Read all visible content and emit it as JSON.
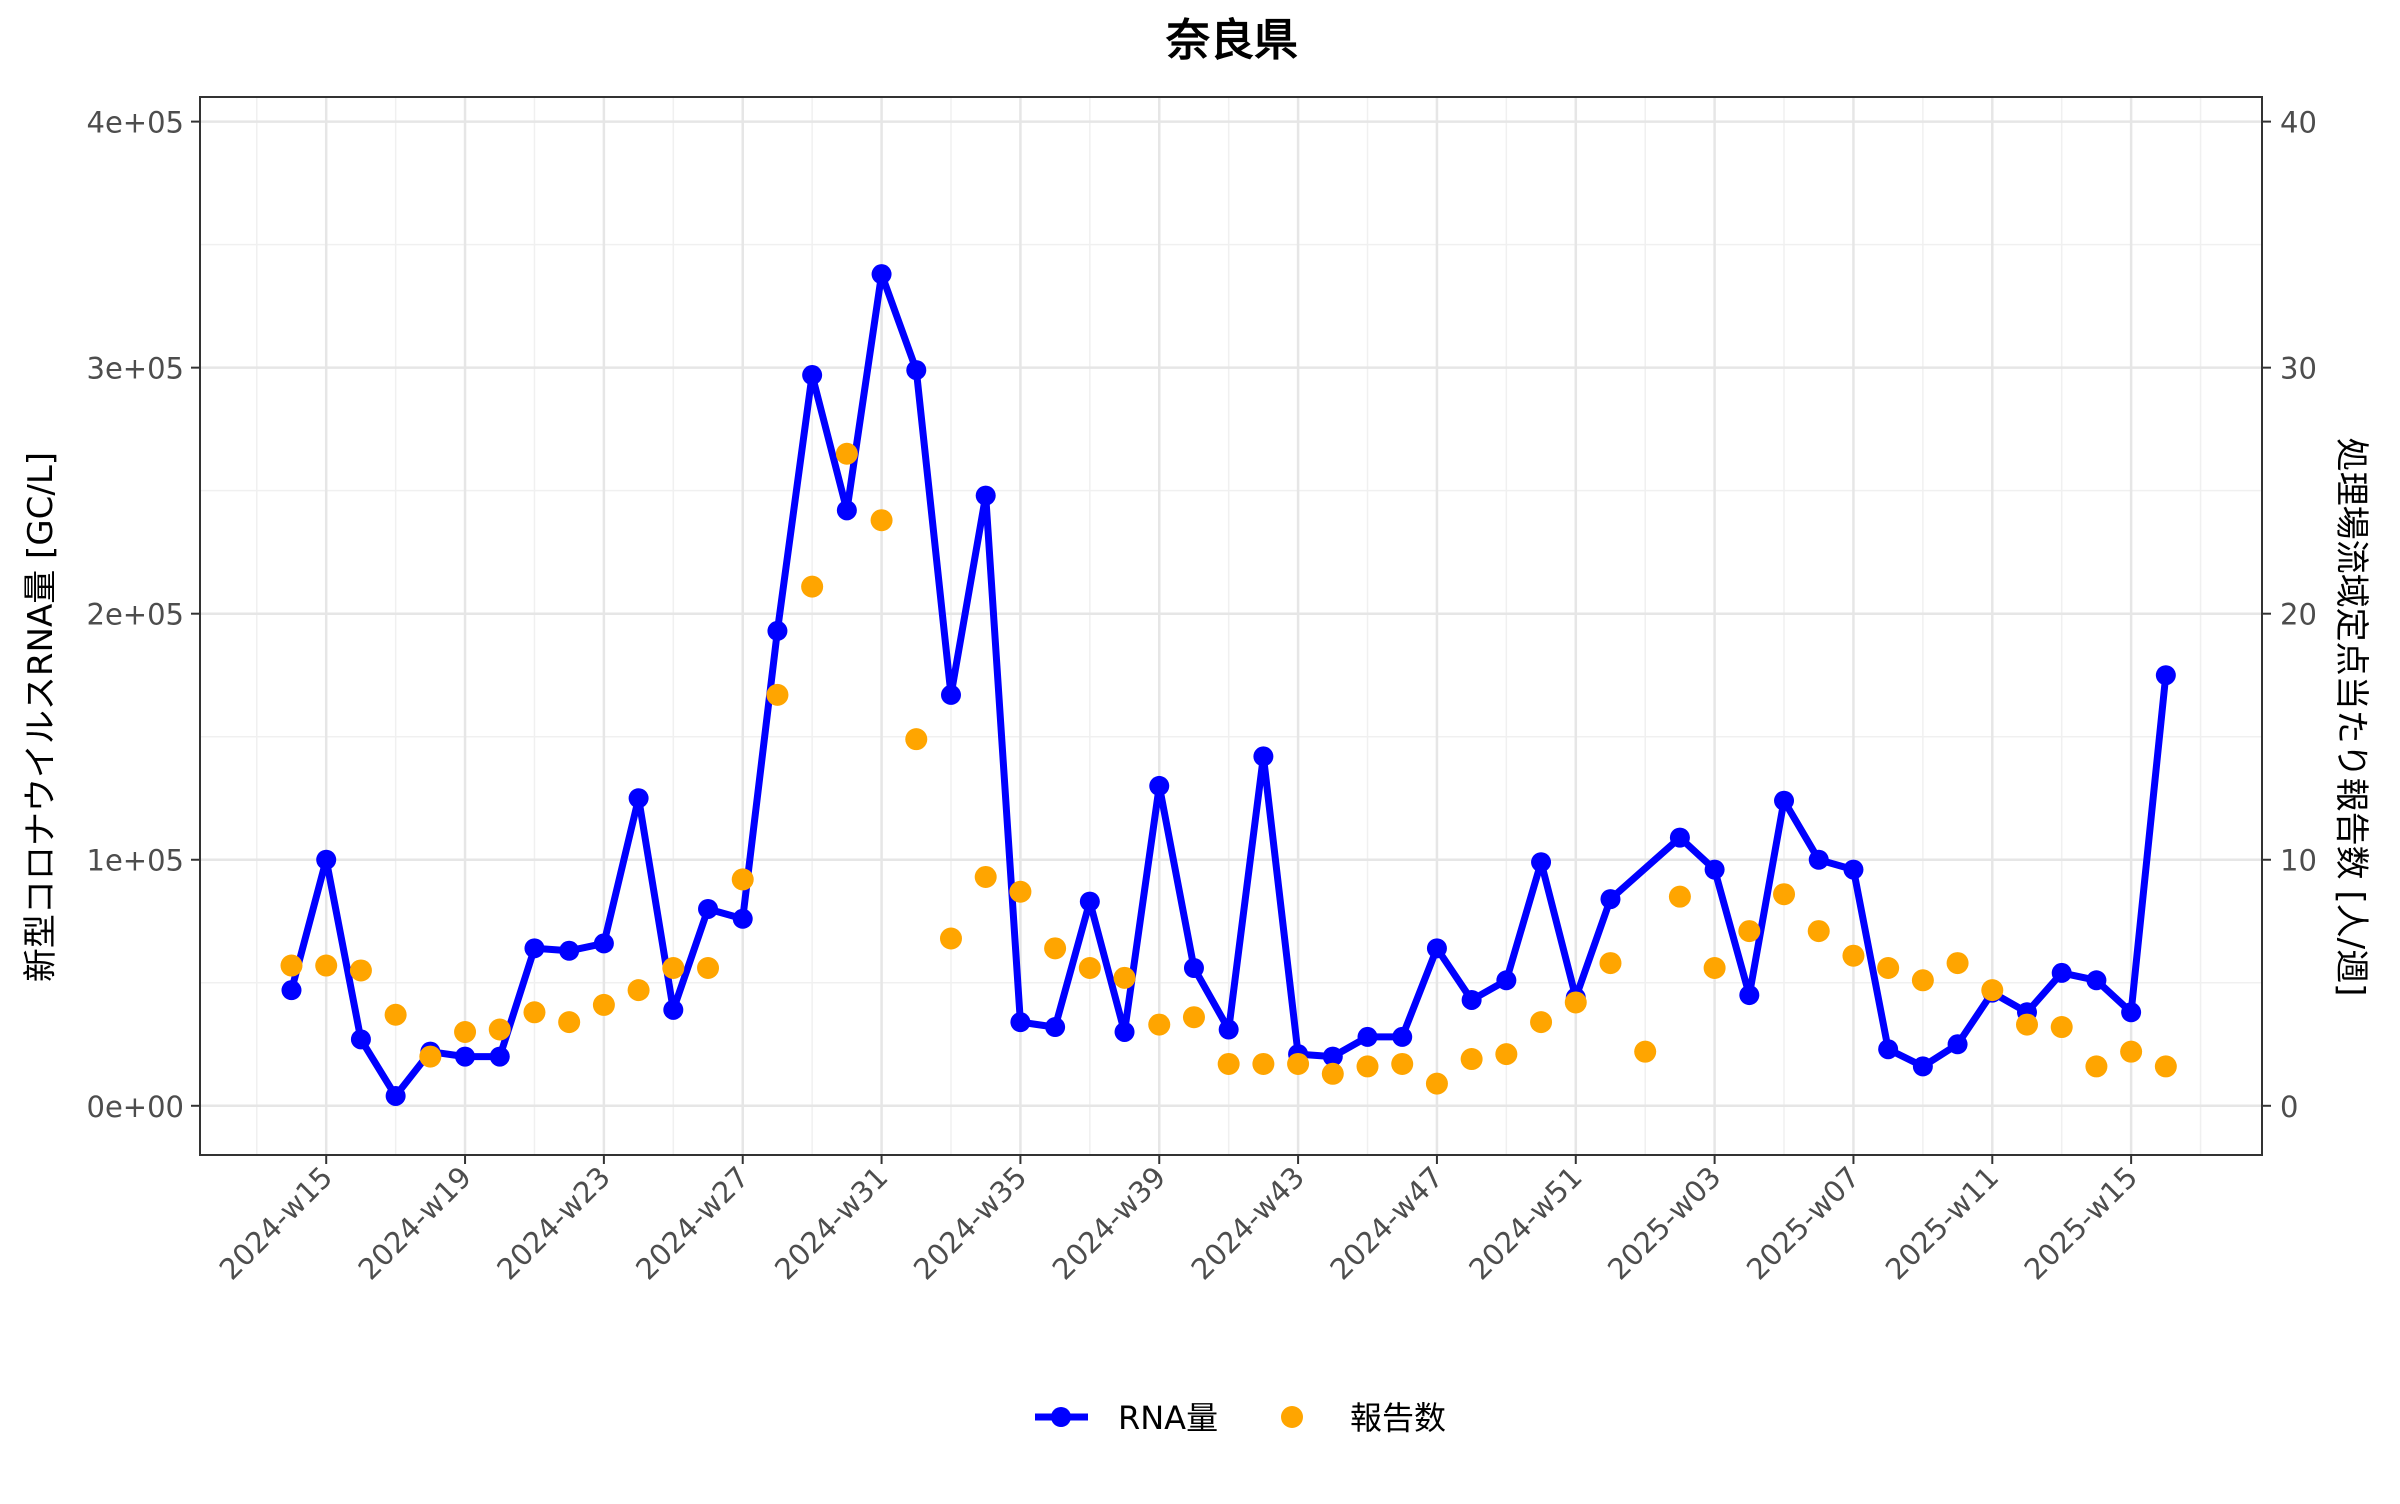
{
  "chart_data": {
    "type": "line",
    "title": "奈良県",
    "ylabel": "新型コロナウイルスRNA量 [GC/L]",
    "y2label": "処理場流域定点当たり報告数 [人/週]",
    "ylim": [
      -20000,
      410000
    ],
    "y2lim": [
      -2,
      41
    ],
    "yticks": [
      "0e+00",
      "1e+05",
      "2e+05",
      "3e+05",
      "4e+05"
    ],
    "ytick_values": [
      0,
      100000,
      200000,
      300000,
      400000
    ],
    "y2ticks": [
      "0",
      "10",
      "20",
      "30",
      "40"
    ],
    "y2tick_values": [
      0,
      10,
      20,
      30,
      40
    ],
    "xticks": [
      "2024-w15",
      "2024-w19",
      "2024-w23",
      "2024-w27",
      "2024-w31",
      "2024-w35",
      "2024-w39",
      "2024-w43",
      "2024-w47",
      "2024-w51",
      "2025-w03",
      "2025-w07",
      "2025-w11",
      "2025-w15"
    ],
    "grid": true,
    "legend_position": "bottom",
    "colors": {
      "rna": "#0000FF",
      "reports": "#FFA500"
    },
    "series": [
      {
        "name": "RNA量",
        "type": "line+points",
        "axis": "left",
        "data": [
          [
            "2024-w14",
            47000
          ],
          [
            "2024-w15",
            100000
          ],
          [
            "2024-w16",
            27000
          ],
          [
            "2024-w17",
            4000
          ],
          [
            "2024-w18",
            22000
          ],
          [
            "2024-w19",
            20000
          ],
          [
            "2024-w20",
            20000
          ],
          [
            "2024-w21",
            64000
          ],
          [
            "2024-w22",
            63000
          ],
          [
            "2024-w23",
            66000
          ],
          [
            "2024-w24",
            125000
          ],
          [
            "2024-w25",
            39000
          ],
          [
            "2024-w26",
            80000
          ],
          [
            "2024-w27",
            76000
          ],
          [
            "2024-w28",
            193000
          ],
          [
            "2024-w29",
            297000
          ],
          [
            "2024-w30",
            242000
          ],
          [
            "2024-w31",
            338000
          ],
          [
            "2024-w32",
            299000
          ],
          [
            "2024-w33",
            167000
          ],
          [
            "2024-w34",
            248000
          ],
          [
            "2024-w35",
            34000
          ],
          [
            "2024-w36",
            32000
          ],
          [
            "2024-w37",
            83000
          ],
          [
            "2024-w38",
            30000
          ],
          [
            "2024-w39",
            130000
          ],
          [
            "2024-w40",
            56000
          ],
          [
            "2024-w41",
            31000
          ],
          [
            "2024-w42",
            142000
          ],
          [
            "2024-w43",
            21000
          ],
          [
            "2024-w44",
            20000
          ],
          [
            "2024-w45",
            28000
          ],
          [
            "2024-w46",
            28000
          ],
          [
            "2024-w47",
            64000
          ],
          [
            "2024-w48",
            43000
          ],
          [
            "2024-w49",
            51000
          ],
          [
            "2024-w50",
            99000
          ],
          [
            "2024-w51",
            44000
          ],
          [
            "2024-w52",
            84000
          ],
          [
            "2025-w02",
            109000
          ],
          [
            "2025-w03",
            96000
          ],
          [
            "2025-w04",
            45000
          ],
          [
            "2025-w05",
            124000
          ],
          [
            "2025-w06",
            100000
          ],
          [
            "2025-w07",
            96000
          ],
          [
            "2025-w08",
            23000
          ],
          [
            "2025-w09",
            16000
          ],
          [
            "2025-w10",
            25000
          ],
          [
            "2025-w11",
            46000
          ],
          [
            "2025-w12",
            38000
          ],
          [
            "2025-w13",
            54000
          ],
          [
            "2025-w14",
            51000
          ],
          [
            "2025-w15",
            38000
          ],
          [
            "2025-w16",
            175000
          ]
        ]
      },
      {
        "name": "報告数",
        "type": "points",
        "axis": "right",
        "data": [
          [
            "2024-w14",
            5.7
          ],
          [
            "2024-w15",
            5.7
          ],
          [
            "2024-w16",
            5.5
          ],
          [
            "2024-w17",
            3.7
          ],
          [
            "2024-w18",
            2.0
          ],
          [
            "2024-w19",
            3.0
          ],
          [
            "2024-w20",
            3.1
          ],
          [
            "2024-w21",
            3.8
          ],
          [
            "2024-w22",
            3.4
          ],
          [
            "2024-w23",
            4.1
          ],
          [
            "2024-w24",
            4.7
          ],
          [
            "2024-w25",
            5.6
          ],
          [
            "2024-w26",
            5.6
          ],
          [
            "2024-w27",
            9.2
          ],
          [
            "2024-w28",
            16.7
          ],
          [
            "2024-w29",
            21.1
          ],
          [
            "2024-w30",
            26.5
          ],
          [
            "2024-w31",
            23.8
          ],
          [
            "2024-w32",
            14.9
          ],
          [
            "2024-w33",
            6.8
          ],
          [
            "2024-w34",
            9.3
          ],
          [
            "2024-w35",
            8.7
          ],
          [
            "2024-w36",
            6.4
          ],
          [
            "2024-w37",
            5.6
          ],
          [
            "2024-w38",
            5.2
          ],
          [
            "2024-w39",
            3.3
          ],
          [
            "2024-w40",
            3.6
          ],
          [
            "2024-w41",
            1.7
          ],
          [
            "2024-w42",
            1.7
          ],
          [
            "2024-w43",
            1.7
          ],
          [
            "2024-w44",
            1.3
          ],
          [
            "2024-w45",
            1.6
          ],
          [
            "2024-w46",
            1.7
          ],
          [
            "2024-w47",
            0.9
          ],
          [
            "2024-w48",
            1.9
          ],
          [
            "2024-w49",
            2.1
          ],
          [
            "2024-w50",
            3.4
          ],
          [
            "2024-w51",
            4.2
          ],
          [
            "2024-w52",
            5.8
          ],
          [
            "2025-w01",
            2.2
          ],
          [
            "2025-w02",
            8.5
          ],
          [
            "2025-w03",
            5.6
          ],
          [
            "2025-w04",
            7.1
          ],
          [
            "2025-w05",
            8.6
          ],
          [
            "2025-w06",
            7.1
          ],
          [
            "2025-w07",
            6.1
          ],
          [
            "2025-w08",
            5.6
          ],
          [
            "2025-w09",
            5.1
          ],
          [
            "2025-w10",
            5.8
          ],
          [
            "2025-w11",
            4.7
          ],
          [
            "2025-w12",
            3.3
          ],
          [
            "2025-w13",
            3.2
          ],
          [
            "2025-w14",
            1.6
          ],
          [
            "2025-w15",
            2.2
          ],
          [
            "2025-w16",
            1.6
          ]
        ]
      }
    ]
  }
}
